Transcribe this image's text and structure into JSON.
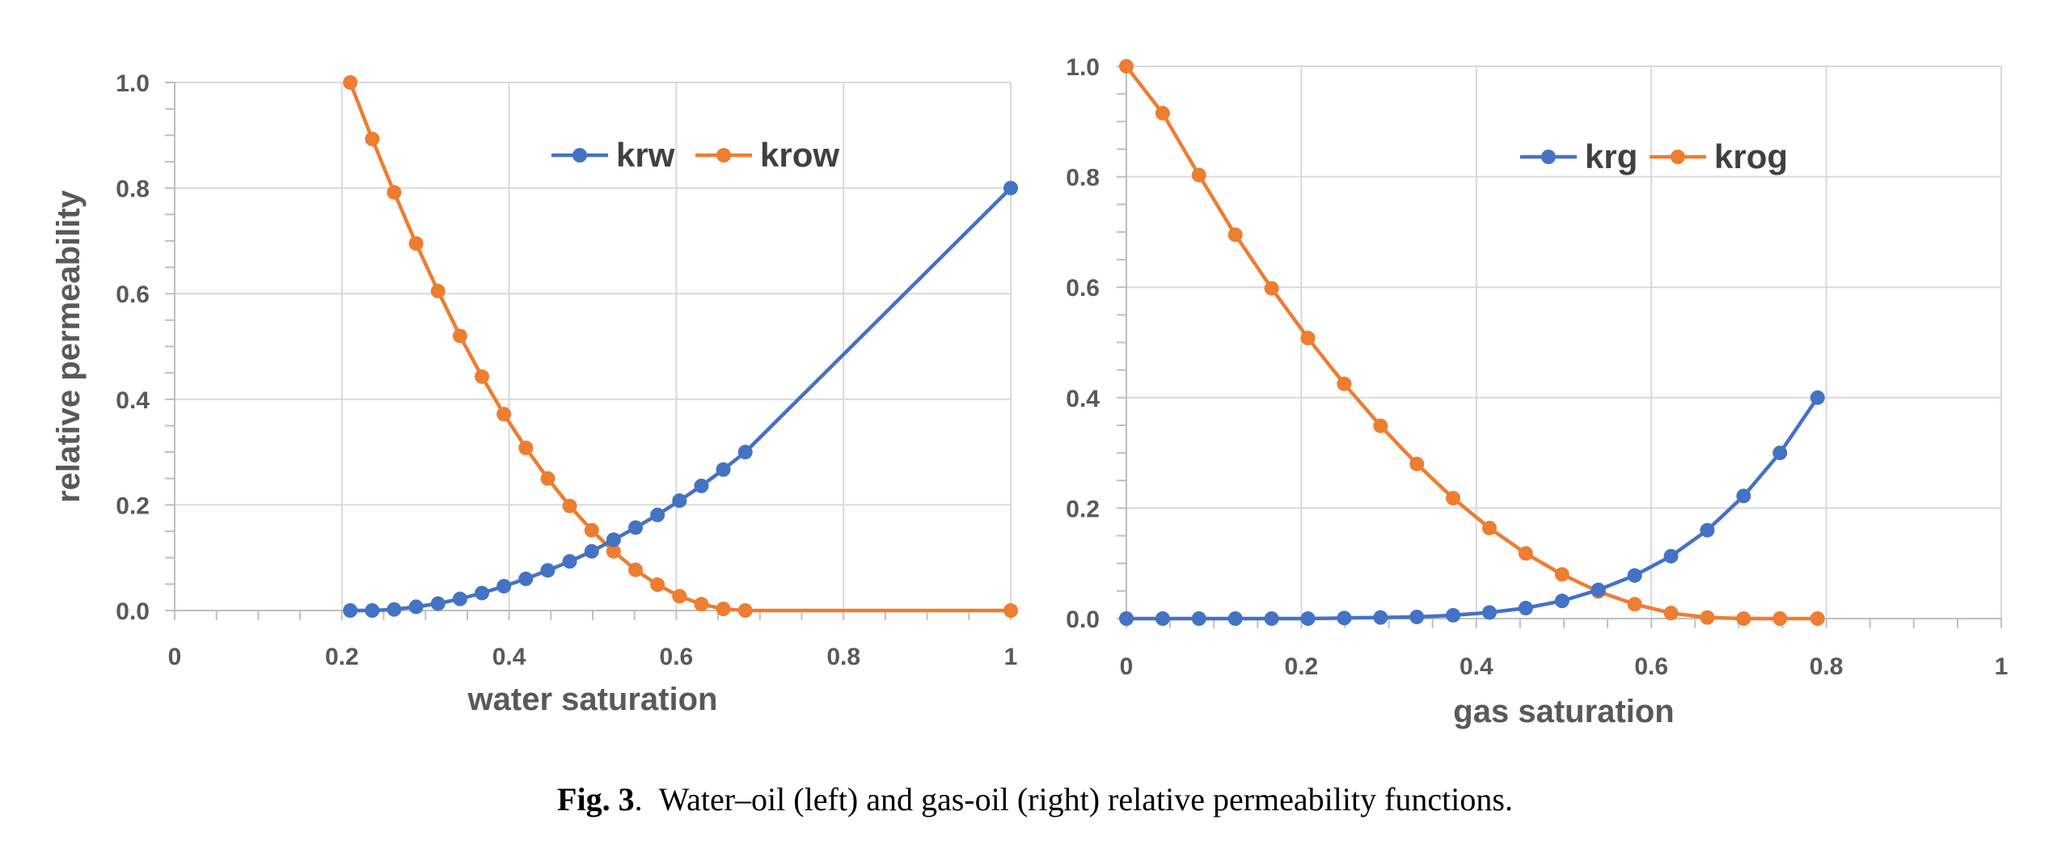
{
  "colors": {
    "series1": "#4472C4",
    "series2": "#ED7D31",
    "grid": "#D9D9D9",
    "axis": "#BFBFBF",
    "text": "#595959"
  },
  "caption": {
    "label": "Fig. 3",
    "separator": ".",
    "text": "Water–oil (left) and gas-oil (right) relative permeability functions."
  },
  "chart_data": [
    {
      "type": "line",
      "title": "",
      "xlabel": "water saturation",
      "ylabel": "relative permeability",
      "xlim": [
        0,
        1
      ],
      "ylim": [
        0,
        1
      ],
      "xticks": [
        0,
        0.2,
        0.4,
        0.6,
        0.8,
        1
      ],
      "xtick_labels": [
        "0",
        "0.2",
        "0.4",
        "0.6",
        "0.8",
        "1"
      ],
      "yticks": [
        0,
        0.2,
        0.4,
        0.6,
        0.8,
        1
      ],
      "ytick_labels": [
        "0.0",
        "0.2",
        "0.4",
        "0.6",
        "0.8",
        "1.0"
      ],
      "grid": true,
      "legend": "top-center",
      "series": [
        {
          "name": "krw",
          "color": "#4472C4",
          "x": [
            0.21,
            0.2363,
            0.2625,
            0.2888,
            0.315,
            0.3413,
            0.3675,
            0.3938,
            0.42,
            0.4463,
            0.4725,
            0.4988,
            0.525,
            0.5513,
            0.5775,
            0.6038,
            0.63,
            0.6563,
            0.6825,
            1.0
          ],
          "y": [
            0.0,
            0.0,
            0.002,
            0.007,
            0.013,
            0.022,
            0.033,
            0.046,
            0.06,
            0.076,
            0.093,
            0.112,
            0.134,
            0.157,
            0.181,
            0.208,
            0.236,
            0.267,
            0.3,
            0.8
          ]
        },
        {
          "name": "krow",
          "color": "#ED7D31",
          "x": [
            0.21,
            0.2363,
            0.2625,
            0.2888,
            0.315,
            0.3413,
            0.3675,
            0.3938,
            0.42,
            0.4463,
            0.4725,
            0.4988,
            0.525,
            0.5513,
            0.5775,
            0.6038,
            0.63,
            0.6563,
            0.6825,
            1.0
          ],
          "y": [
            1.0,
            0.893,
            0.792,
            0.695,
            0.605,
            0.52,
            0.443,
            0.372,
            0.308,
            0.25,
            0.198,
            0.152,
            0.112,
            0.077,
            0.049,
            0.027,
            0.012,
            0.003,
            0.0,
            0.0
          ]
        }
      ]
    },
    {
      "type": "line",
      "title": "",
      "xlabel": "gas saturation",
      "ylabel": "",
      "xlim": [
        0,
        1
      ],
      "ylim": [
        0,
        1
      ],
      "xticks": [
        0,
        0.2,
        0.4,
        0.6,
        0.8,
        1
      ],
      "xtick_labels": [
        "0",
        "0.2",
        "0.4",
        "0.6",
        "0.8",
        "1"
      ],
      "yticks": [
        0,
        0.2,
        0.4,
        0.6,
        0.8,
        1
      ],
      "ytick_labels": [
        "0.0",
        "0.2",
        "0.4",
        "0.6",
        "0.8",
        "1.0"
      ],
      "grid": true,
      "legend": "top-center",
      "series": [
        {
          "name": "krg",
          "color": "#4472C4",
          "x": [
            0.0,
            0.0415,
            0.083,
            0.1245,
            0.166,
            0.2075,
            0.249,
            0.2905,
            0.332,
            0.3735,
            0.415,
            0.4565,
            0.498,
            0.5395,
            0.581,
            0.6225,
            0.664,
            0.7055,
            0.747,
            0.79
          ],
          "y": [
            0.0,
            0.0,
            0.0,
            0.0,
            0.0,
            0.0,
            0.001,
            0.002,
            0.003,
            0.006,
            0.011,
            0.019,
            0.032,
            0.052,
            0.078,
            0.113,
            0.16,
            0.222,
            0.3,
            0.4
          ]
        },
        {
          "name": "krog",
          "color": "#ED7D31",
          "x": [
            0.0,
            0.0415,
            0.083,
            0.1245,
            0.166,
            0.2075,
            0.249,
            0.2905,
            0.332,
            0.3735,
            0.415,
            0.4565,
            0.498,
            0.5395,
            0.581,
            0.6225,
            0.664,
            0.7055,
            0.747,
            0.79
          ],
          "y": [
            1.0,
            0.915,
            0.803,
            0.695,
            0.598,
            0.508,
            0.425,
            0.349,
            0.28,
            0.218,
            0.164,
            0.118,
            0.08,
            0.049,
            0.026,
            0.01,
            0.002,
            0.0,
            0.0,
            0.0
          ]
        }
      ]
    }
  ]
}
